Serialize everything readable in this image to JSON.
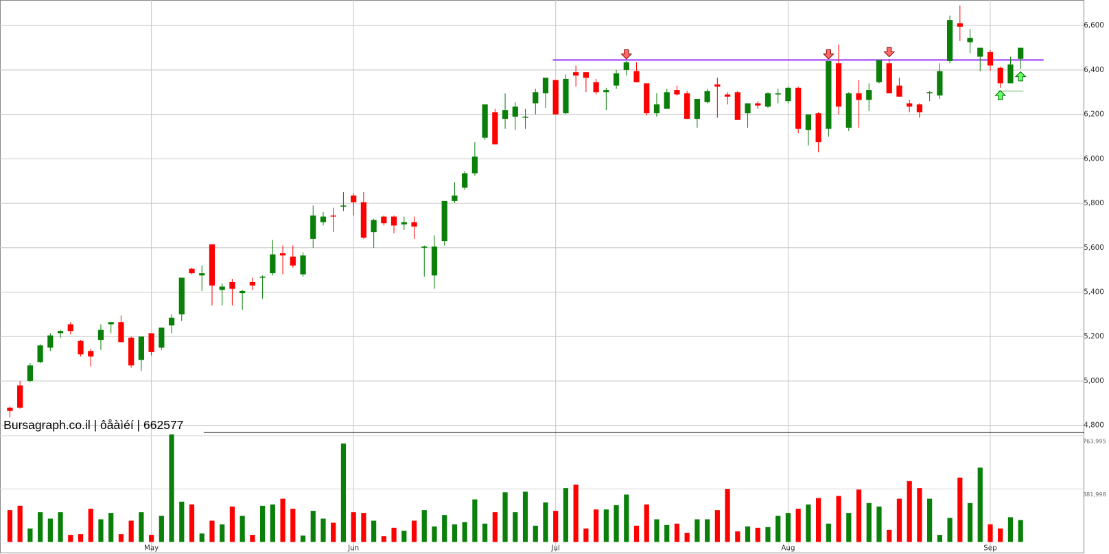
{
  "chart_data": {
    "type": "candlestick",
    "categories": [
      null,
      null,
      null,
      null,
      null,
      null,
      null,
      null,
      null,
      null,
      null,
      null,
      null,
      null,
      "May",
      null,
      null,
      null,
      null,
      null,
      null,
      null,
      null,
      null,
      null,
      null,
      null,
      null,
      null,
      null,
      null,
      null,
      null,
      null,
      "Jun",
      null,
      null,
      null,
      null,
      null,
      null,
      null,
      null,
      null,
      null,
      null,
      null,
      null,
      null,
      null,
      null,
      null,
      null,
      null,
      "Jul",
      null,
      null,
      null,
      null,
      null,
      null,
      null,
      null,
      null,
      null,
      null,
      null,
      null,
      null,
      null,
      null,
      null,
      null,
      null,
      null,
      null,
      null,
      "Aug",
      null,
      null,
      null,
      null,
      null,
      null,
      null,
      null,
      null,
      null,
      null,
      null,
      null,
      null,
      null,
      null,
      null,
      null,
      null,
      "Sep",
      null,
      null,
      null
    ],
    "open": [
      4880,
      4980,
      5000,
      5085,
      5150,
      5215,
      5255,
      5180,
      5135,
      5185,
      5255,
      5265,
      5195,
      5095,
      5215,
      5150,
      5250,
      5300,
      5505,
      5475,
      5615,
      5410,
      5445,
      5395,
      5445,
      5465,
      5485,
      5575,
      5560,
      5480,
      5640,
      5715,
      5745,
      5785,
      5835,
      5805,
      5670,
      5740,
      5740,
      5705,
      5715,
      5600,
      5475,
      5630,
      5810,
      5870,
      5935,
      6095,
      6210,
      6180,
      6190,
      6185,
      6250,
      6295,
      6355,
      6205,
      6390,
      6390,
      6345,
      6300,
      6330,
      6400,
      6395,
      6340,
      6205,
      6225,
      6310,
      6295,
      6180,
      6255,
      6335,
      6290,
      6300,
      6205,
      6250,
      6235,
      6290,
      6260,
      6320,
      6130,
      6205,
      6135,
      6430,
      6140,
      6295,
      6265,
      6345,
      6430,
      6330,
      6250,
      6245,
      6295,
      6285,
      6440,
      6610,
      6525,
      6460,
      6480,
      6410,
      6340,
      6450
    ],
    "high": [
      4885,
      5000,
      5080,
      5165,
      5215,
      5230,
      5265,
      5185,
      5145,
      5255,
      5265,
      5295,
      5200,
      5200,
      5215,
      5240,
      5300,
      5465,
      5510,
      5520,
      5615,
      5440,
      5460,
      5410,
      5465,
      5475,
      5635,
      5610,
      5610,
      5580,
      5790,
      5760,
      5780,
      5850,
      5845,
      5850,
      5730,
      5745,
      5745,
      5740,
      5740,
      5610,
      5655,
      5810,
      5895,
      5945,
      6075,
      6245,
      6225,
      6295,
      6255,
      6225,
      6315,
      6365,
      6355,
      6380,
      6420,
      6390,
      6360,
      6320,
      6400,
      6440,
      6435,
      6340,
      6295,
      6315,
      6330,
      6305,
      6270,
      6315,
      6365,
      6300,
      6305,
      6250,
      6260,
      6300,
      6315,
      6325,
      6325,
      6200,
      6210,
      6440,
      6515,
      6300,
      6355,
      6340,
      6445,
      6450,
      6365,
      6265,
      6250,
      6305,
      6430,
      6645,
      6690,
      6585,
      6500,
      6490,
      6415,
      6460,
      6500
    ],
    "low": [
      4835,
      4875,
      4995,
      5080,
      5135,
      5195,
      5210,
      5110,
      5065,
      5140,
      5215,
      5175,
      5060,
      5045,
      5115,
      5140,
      5215,
      5270,
      5480,
      5405,
      5340,
      5340,
      5340,
      5320,
      5410,
      5370,
      5475,
      5480,
      5510,
      5470,
      5600,
      5700,
      5670,
      5765,
      5745,
      5640,
      5600,
      5700,
      5665,
      5680,
      5640,
      5470,
      5415,
      5610,
      5800,
      5860,
      5925,
      6085,
      6065,
      6135,
      6130,
      6135,
      6200,
      6230,
      6200,
      6200,
      6325,
      6300,
      6290,
      6220,
      6315,
      6375,
      6345,
      6195,
      6190,
      6225,
      6285,
      6180,
      6140,
      6250,
      6185,
      6245,
      6175,
      6140,
      6225,
      6230,
      6250,
      6250,
      6115,
      6060,
      6030,
      6100,
      6200,
      6125,
      6140,
      6215,
      6340,
      6295,
      6280,
      6210,
      6185,
      6260,
      6270,
      6430,
      6530,
      6475,
      6395,
      6395,
      6320,
      6340,
      6405
    ],
    "close": [
      4865,
      4880,
      5070,
      5160,
      5205,
      5225,
      5225,
      5120,
      5110,
      5230,
      5265,
      5175,
      5070,
      5200,
      5130,
      5240,
      5285,
      5465,
      5485,
      5485,
      5430,
      5425,
      5415,
      5405,
      5430,
      5470,
      5570,
      5565,
      5520,
      5565,
      5745,
      5740,
      5740,
      5790,
      5805,
      5645,
      5725,
      5710,
      5700,
      5715,
      5695,
      5605,
      5605,
      5810,
      5835,
      5935,
      6010,
      6245,
      6065,
      6220,
      6235,
      6190,
      6300,
      6365,
      6200,
      6360,
      6375,
      6365,
      6300,
      6310,
      6385,
      6435,
      6345,
      6205,
      6245,
      6300,
      6290,
      6180,
      6270,
      6305,
      6325,
      6280,
      6175,
      6250,
      6240,
      6295,
      6295,
      6320,
      6135,
      6200,
      6075,
      6440,
      6235,
      6295,
      6265,
      6310,
      6445,
      6295,
      6280,
      6235,
      6210,
      6300,
      6395,
      6625,
      6595,
      6545,
      6500,
      6420,
      6340,
      6425,
      6500
    ],
    "volume": [
      229000,
      260000,
      97000,
      214000,
      168000,
      214000,
      51000,
      56000,
      239000,
      163000,
      209000,
      56000,
      153000,
      214000,
      51000,
      188000,
      774000,
      290000,
      270000,
      61000,
      153000,
      127000,
      255000,
      188000,
      51000,
      260000,
      270000,
      311000,
      239000,
      46000,
      224000,
      168000,
      138000,
      708000,
      214000,
      209000,
      153000,
      41000,
      102000,
      81000,
      153000,
      229000,
      112000,
      194000,
      127000,
      143000,
      306000,
      132000,
      214000,
      357000,
      214000,
      362000,
      117000,
      285000,
      224000,
      387000,
      413000,
      97000,
      234000,
      234000,
      265000,
      341000,
      117000,
      270000,
      163000,
      122000,
      132000,
      66000,
      163000,
      163000,
      229000,
      382000,
      76000,
      112000,
      102000,
      107000,
      188000,
      209000,
      239000,
      270000,
      316000,
      132000,
      331000,
      209000,
      377000,
      280000,
      255000,
      87000,
      311000,
      438000,
      387000,
      311000,
      51000,
      173000,
      463000,
      280000,
      535000,
      127000,
      97000,
      178000,
      158000
    ],
    "ylim": [
      4769,
      6715
    ],
    "yticks": [
      {
        "value": 4800,
        "label": "4,800"
      },
      {
        "value": 5000,
        "label": "5,000"
      },
      {
        "value": 5200,
        "label": "5,200"
      },
      {
        "value": 5400,
        "label": "5,400"
      },
      {
        "value": 5600,
        "label": "5,600"
      },
      {
        "value": 5800,
        "label": "5,800"
      },
      {
        "value": 6000,
        "label": "6,000"
      },
      {
        "value": 6200,
        "label": "6,200"
      },
      {
        "value": 6400,
        "label": "6,400"
      },
      {
        "value": 6600,
        "label": "6,600"
      }
    ],
    "volume_ylim": [
      0,
      784000
    ],
    "volume_yticks": [
      {
        "value": 381998,
        "label": "381,998"
      },
      {
        "value": 763995,
        "label": "763,995"
      }
    ],
    "up_color": "#0a800a",
    "down_color": "#ff0000",
    "grid": true,
    "watermark": "Bursagraph.co.il | ôåàìéí | 662577",
    "levels": [
      {
        "value": 6445,
        "from": 54,
        "to": 102,
        "color": "#9933ff"
      },
      {
        "value": 6305,
        "from": 98,
        "to": 100,
        "color": "#b8e0b8"
      }
    ],
    "signals": [
      {
        "at": 61,
        "dir": "down"
      },
      {
        "at": 81,
        "dir": "down"
      },
      {
        "at": 87,
        "dir": "down"
      },
      {
        "at": 98,
        "dir": "up"
      },
      {
        "at": 100,
        "dir": "up"
      }
    ]
  }
}
